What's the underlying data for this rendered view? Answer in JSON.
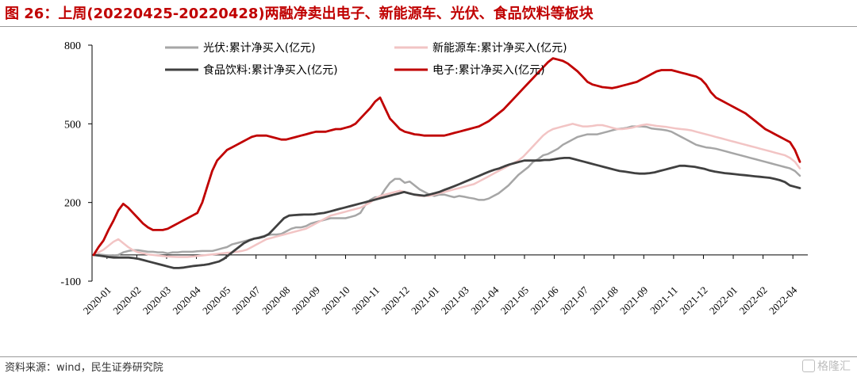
{
  "header": {
    "title": "图 26：上周(20220425-20220428)两融净卖出电子、新能源车、光伏、食品饮料等板块"
  },
  "footer": {
    "source": "资料来源：wind，民生证券研究院",
    "watermark": "格隆汇"
  },
  "chart_data": {
    "type": "line",
    "title": "",
    "xlabel": "",
    "ylabel": "",
    "ylim": [
      -100,
      800
    ],
    "yticks": [
      -100,
      200,
      500,
      800
    ],
    "xticks": [
      "2020-01",
      "2020-02",
      "2020-03",
      "2020-04",
      "2020-05",
      "2020-07",
      "2020-08",
      "2020-09",
      "2020-10",
      "2020-11",
      "2020-12",
      "2021-01",
      "2021-03",
      "2021-04",
      "2021-05",
      "2021-06",
      "2021-07",
      "2021-08",
      "2021-09",
      "2021-11",
      "2021-12",
      "2022-01",
      "2022-02",
      "2022-04"
    ],
    "grid": false,
    "legend_position": "top",
    "series": [
      {
        "name": "光伏:累计净买入(亿元)",
        "color": "#a6a6a6",
        "values": [
          0,
          2,
          0,
          -2,
          -3,
          0,
          10,
          15,
          18,
          18,
          15,
          12,
          12,
          10,
          10,
          6,
          10,
          10,
          12,
          12,
          12,
          14,
          15,
          15,
          15,
          20,
          25,
          30,
          40,
          45,
          50,
          55,
          60,
          65,
          70,
          75,
          78,
          78,
          80,
          90,
          100,
          105,
          105,
          110,
          120,
          125,
          130,
          135,
          140,
          140,
          140,
          140,
          145,
          150,
          160,
          190,
          210,
          220,
          220,
          250,
          275,
          290,
          290,
          275,
          280,
          265,
          250,
          240,
          230,
          225,
          230,
          230,
          225,
          220,
          225,
          222,
          218,
          215,
          210,
          210,
          215,
          225,
          235,
          250,
          265,
          285,
          305,
          320,
          335,
          355,
          365,
          380,
          385,
          395,
          405,
          420,
          430,
          440,
          450,
          455,
          460,
          460,
          460,
          465,
          470,
          475,
          480,
          482,
          485,
          490,
          490,
          490,
          488,
          482,
          480,
          478,
          475,
          470,
          460,
          450,
          440,
          430,
          420,
          415,
          410,
          408,
          405,
          400,
          395,
          390,
          385,
          380,
          375,
          370,
          365,
          360,
          355,
          350,
          345,
          340,
          335,
          330,
          320,
          302
        ]
      },
      {
        "name": "新能源车:累计净买入(亿元)",
        "color": "#f2c4c4",
        "values": [
          0,
          10,
          20,
          35,
          50,
          60,
          45,
          30,
          18,
          10,
          6,
          2,
          0,
          -2,
          -4,
          -6,
          -7,
          -8,
          -8,
          -8,
          -6,
          -4,
          -2,
          0,
          2,
          4,
          6,
          8,
          10,
          12,
          15,
          20,
          30,
          40,
          50,
          60,
          65,
          70,
          75,
          80,
          85,
          90,
          95,
          100,
          110,
          120,
          130,
          140,
          150,
          155,
          160,
          165,
          170,
          175,
          180,
          190,
          200,
          215,
          225,
          230,
          235,
          240,
          245,
          240,
          235,
          230,
          225,
          225,
          225,
          230,
          235,
          240,
          245,
          250,
          255,
          260,
          265,
          270,
          280,
          290,
          300,
          310,
          320,
          330,
          340,
          350,
          360,
          375,
          395,
          415,
          435,
          455,
          470,
          480,
          485,
          490,
          495,
          500,
          495,
          490,
          490,
          492,
          495,
          495,
          490,
          485,
          480,
          480,
          482,
          485,
          490,
          495,
          498,
          495,
          492,
          490,
          488,
          485,
          482,
          480,
          478,
          475,
          470,
          465,
          460,
          455,
          450,
          445,
          440,
          435,
          430,
          425,
          420,
          415,
          410,
          405,
          400,
          395,
          390,
          385,
          380,
          370,
          355,
          330
        ]
      },
      {
        "name": "食品饮料:累计净买入(亿元)",
        "color": "#404040",
        "values": [
          0,
          -2,
          -5,
          -8,
          -10,
          -10,
          -10,
          -10,
          -12,
          -15,
          -20,
          -25,
          -30,
          -35,
          -40,
          -45,
          -50,
          -50,
          -48,
          -45,
          -42,
          -40,
          -38,
          -35,
          -30,
          -25,
          -15,
          0,
          15,
          30,
          45,
          55,
          62,
          65,
          70,
          80,
          100,
          120,
          140,
          150,
          152,
          153,
          154,
          154,
          155,
          158,
          160,
          165,
          170,
          175,
          180,
          185,
          190,
          195,
          200,
          205,
          210,
          215,
          220,
          225,
          230,
          235,
          240,
          235,
          230,
          228,
          226,
          230,
          235,
          240,
          248,
          255,
          262,
          270,
          278,
          286,
          294,
          302,
          310,
          318,
          325,
          330,
          338,
          345,
          350,
          355,
          360,
          360,
          360,
          360,
          362,
          362,
          365,
          368,
          370,
          370,
          365,
          360,
          355,
          350,
          345,
          340,
          335,
          330,
          325,
          320,
          318,
          315,
          312,
          310,
          310,
          312,
          315,
          320,
          325,
          330,
          335,
          340,
          340,
          338,
          336,
          332,
          328,
          322,
          318,
          315,
          312,
          310,
          308,
          306,
          304,
          302,
          300,
          298,
          296,
          294,
          290,
          285,
          278,
          265,
          260,
          255
        ]
      },
      {
        "name": "电子:累计净买入(亿元)",
        "color": "#c00000",
        "values": [
          0,
          30,
          55,
          95,
          130,
          170,
          195,
          180,
          160,
          140,
          120,
          105,
          95,
          95,
          95,
          100,
          110,
          120,
          130,
          140,
          150,
          160,
          200,
          260,
          320,
          360,
          380,
          400,
          410,
          420,
          430,
          440,
          450,
          455,
          455,
          455,
          450,
          445,
          440,
          440,
          445,
          450,
          455,
          460,
          465,
          470,
          470,
          470,
          475,
          480,
          480,
          485,
          490,
          500,
          520,
          540,
          560,
          585,
          600,
          560,
          520,
          500,
          480,
          470,
          465,
          460,
          458,
          455,
          455,
          455,
          455,
          455,
          460,
          465,
          470,
          475,
          480,
          485,
          490,
          500,
          510,
          525,
          540,
          555,
          575,
          595,
          615,
          635,
          655,
          675,
          695,
          715,
          735,
          750,
          745,
          740,
          730,
          715,
          700,
          680,
          660,
          650,
          645,
          640,
          638,
          636,
          640,
          645,
          650,
          655,
          660,
          670,
          680,
          690,
          700,
          705,
          705,
          705,
          700,
          695,
          690,
          685,
          680,
          670,
          650,
          620,
          600,
          590,
          580,
          570,
          560,
          550,
          540,
          525,
          510,
          495,
          480,
          470,
          460,
          450,
          440,
          430,
          400,
          355
        ]
      }
    ]
  }
}
